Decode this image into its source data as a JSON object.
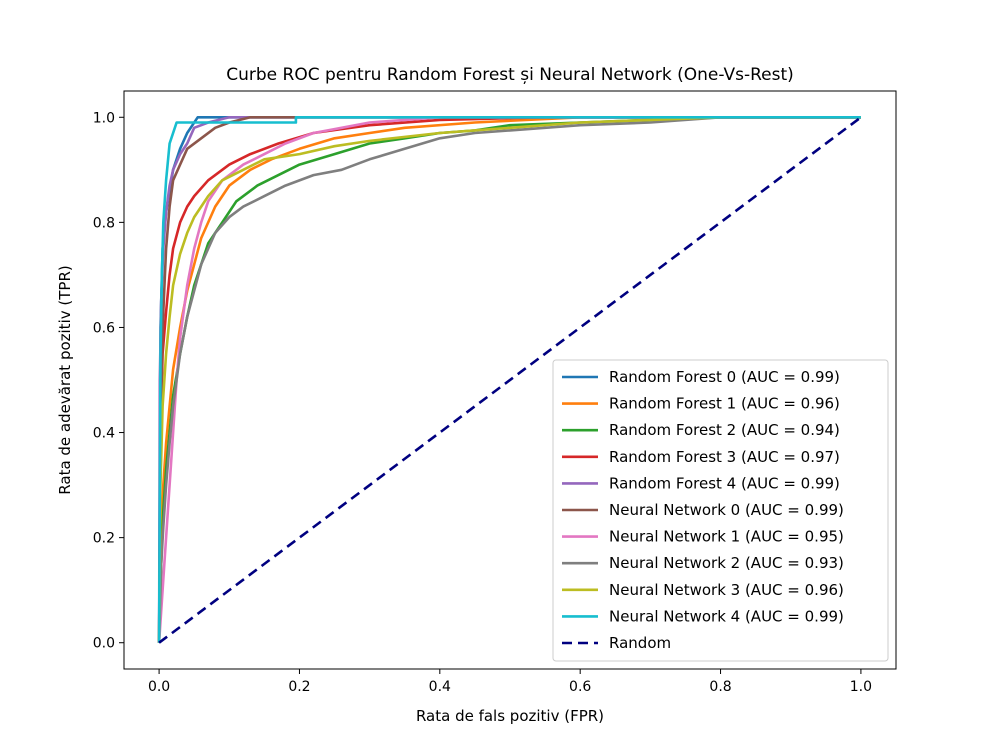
{
  "chart_data": {
    "type": "line",
    "title": "Curbe ROC pentru Random Forest și Neural Network (One-Vs-Rest)",
    "xlabel": "Rata de fals pozitiv (FPR)",
    "ylabel": "Rata de adevărat pozitiv (TPR)",
    "xlim": [
      -0.05,
      1.05
    ],
    "ylim": [
      -0.05,
      1.05
    ],
    "xticks": [
      "0.0",
      "0.2",
      "0.4",
      "0.6",
      "0.8",
      "1.0"
    ],
    "yticks": [
      "0.0",
      "0.2",
      "0.4",
      "0.6",
      "0.8",
      "1.0"
    ],
    "grid": false,
    "legend_position": "lower-right",
    "series": [
      {
        "name": "Random Forest 0 (AUC = 0.99)",
        "color": "#1f77b4",
        "dash": false,
        "x": [
          0,
          0.002,
          0.005,
          0.01,
          0.02,
          0.03,
          0.04,
          0.055,
          0.1,
          0.3,
          0.6,
          1.0
        ],
        "y": [
          0,
          0.6,
          0.75,
          0.82,
          0.9,
          0.94,
          0.97,
          1.0,
          1.0,
          1.0,
          1.0,
          1.0
        ]
      },
      {
        "name": "Random Forest 1 (AUC = 0.96)",
        "color": "#ff7f0e",
        "dash": false,
        "x": [
          0,
          0.003,
          0.006,
          0.01,
          0.015,
          0.02,
          0.03,
          0.04,
          0.05,
          0.06,
          0.08,
          0.1,
          0.13,
          0.16,
          0.2,
          0.25,
          0.3,
          0.35,
          0.45,
          0.6,
          0.8,
          1.0
        ],
        "y": [
          0,
          0.2,
          0.3,
          0.38,
          0.45,
          0.52,
          0.6,
          0.67,
          0.72,
          0.77,
          0.83,
          0.87,
          0.9,
          0.92,
          0.94,
          0.96,
          0.97,
          0.98,
          0.99,
          1.0,
          1.0,
          1.0
        ]
      },
      {
        "name": "Random Forest 2 (AUC = 0.94)",
        "color": "#2ca02c",
        "dash": false,
        "x": [
          0,
          0.003,
          0.006,
          0.01,
          0.015,
          0.02,
          0.03,
          0.04,
          0.05,
          0.07,
          0.09,
          0.11,
          0.14,
          0.17,
          0.2,
          0.25,
          0.3,
          0.35,
          0.4,
          0.45,
          0.5,
          0.6,
          0.7,
          0.8,
          1.0
        ],
        "y": [
          0,
          0.15,
          0.25,
          0.33,
          0.4,
          0.47,
          0.55,
          0.62,
          0.68,
          0.76,
          0.8,
          0.84,
          0.87,
          0.89,
          0.91,
          0.93,
          0.95,
          0.96,
          0.97,
          0.975,
          0.985,
          0.99,
          0.995,
          1.0,
          1.0
        ]
      },
      {
        "name": "Random Forest 3 (AUC = 0.97)",
        "color": "#d62728",
        "dash": false,
        "x": [
          0,
          0.002,
          0.005,
          0.01,
          0.015,
          0.02,
          0.03,
          0.04,
          0.05,
          0.07,
          0.1,
          0.13,
          0.17,
          0.22,
          0.3,
          0.4,
          0.55,
          0.7,
          1.0
        ],
        "y": [
          0,
          0.4,
          0.55,
          0.63,
          0.7,
          0.75,
          0.8,
          0.83,
          0.85,
          0.88,
          0.91,
          0.93,
          0.95,
          0.97,
          0.985,
          0.995,
          1.0,
          1.0,
          1.0
        ]
      },
      {
        "name": "Random Forest 4 (AUC = 0.99)",
        "color": "#9467bd",
        "dash": false,
        "x": [
          0,
          0.001,
          0.003,
          0.006,
          0.01,
          0.015,
          0.02,
          0.03,
          0.04,
          0.05,
          0.07,
          0.1,
          0.3,
          1.0
        ],
        "y": [
          0,
          0.5,
          0.65,
          0.75,
          0.82,
          0.87,
          0.9,
          0.93,
          0.95,
          0.98,
          0.99,
          1.0,
          1.0,
          1.0
        ]
      },
      {
        "name": "Neural Network 0 (AUC = 0.99)",
        "color": "#8c564b",
        "dash": false,
        "x": [
          0,
          0.002,
          0.005,
          0.01,
          0.015,
          0.02,
          0.03,
          0.04,
          0.06,
          0.08,
          0.1,
          0.13,
          0.19,
          0.3,
          1.0
        ],
        "y": [
          0,
          0.4,
          0.6,
          0.75,
          0.83,
          0.88,
          0.91,
          0.94,
          0.96,
          0.98,
          0.99,
          1.0,
          1.0,
          1.0,
          1.0
        ]
      },
      {
        "name": "Neural Network 1 (AUC = 0.95)",
        "color": "#e377c2",
        "dash": false,
        "x": [
          0,
          0.005,
          0.01,
          0.015,
          0.02,
          0.025,
          0.03,
          0.04,
          0.05,
          0.06,
          0.07,
          0.09,
          0.12,
          0.15,
          0.18,
          0.22,
          0.26,
          0.3,
          0.35,
          0.4,
          0.5,
          0.6,
          0.8,
          1.0
        ],
        "y": [
          0,
          0.1,
          0.2,
          0.3,
          0.4,
          0.5,
          0.58,
          0.68,
          0.75,
          0.8,
          0.84,
          0.88,
          0.91,
          0.93,
          0.95,
          0.97,
          0.98,
          0.99,
          0.995,
          1.0,
          1.0,
          1.0,
          1.0,
          1.0
        ]
      },
      {
        "name": "Neural Network 2 (AUC = 0.93)",
        "color": "#7f7f7f",
        "dash": false,
        "x": [
          0,
          0.003,
          0.006,
          0.01,
          0.015,
          0.02,
          0.03,
          0.04,
          0.05,
          0.06,
          0.08,
          0.1,
          0.12,
          0.15,
          0.18,
          0.22,
          0.26,
          0.3,
          0.35,
          0.4,
          0.45,
          0.5,
          0.55,
          0.6,
          0.7,
          0.8,
          1.0
        ],
        "y": [
          0,
          0.15,
          0.22,
          0.3,
          0.38,
          0.45,
          0.55,
          0.62,
          0.67,
          0.72,
          0.78,
          0.81,
          0.83,
          0.85,
          0.87,
          0.89,
          0.9,
          0.92,
          0.94,
          0.96,
          0.97,
          0.975,
          0.98,
          0.985,
          0.99,
          1.0,
          1.0
        ]
      },
      {
        "name": "Neural Network 3 (AUC = 0.96)",
        "color": "#bcbd22",
        "dash": false,
        "x": [
          0,
          0.002,
          0.005,
          0.01,
          0.015,
          0.02,
          0.03,
          0.04,
          0.05,
          0.07,
          0.09,
          0.12,
          0.15,
          0.2,
          0.25,
          0.3,
          0.4,
          0.5,
          0.6,
          0.7,
          0.8,
          1.0
        ],
        "y": [
          0,
          0.3,
          0.45,
          0.55,
          0.62,
          0.68,
          0.74,
          0.78,
          0.81,
          0.85,
          0.88,
          0.9,
          0.92,
          0.93,
          0.945,
          0.955,
          0.97,
          0.98,
          0.99,
          0.995,
          1.0,
          1.0
        ]
      },
      {
        "name": "Neural Network 4 (AUC = 0.99)",
        "color": "#17becf",
        "dash": false,
        "x": [
          0,
          0.002,
          0.004,
          0.006,
          0.01,
          0.015,
          0.025,
          0.03,
          0.1,
          0.195,
          0.195,
          0.3,
          1.0
        ],
        "y": [
          0,
          0.55,
          0.7,
          0.8,
          0.88,
          0.95,
          0.99,
          0.99,
          0.99,
          0.99,
          1.0,
          1.0,
          1.0
        ]
      },
      {
        "name": "Random",
        "color": "#000080",
        "dash": true,
        "x": [
          0,
          1
        ],
        "y": [
          0,
          1
        ]
      }
    ]
  }
}
